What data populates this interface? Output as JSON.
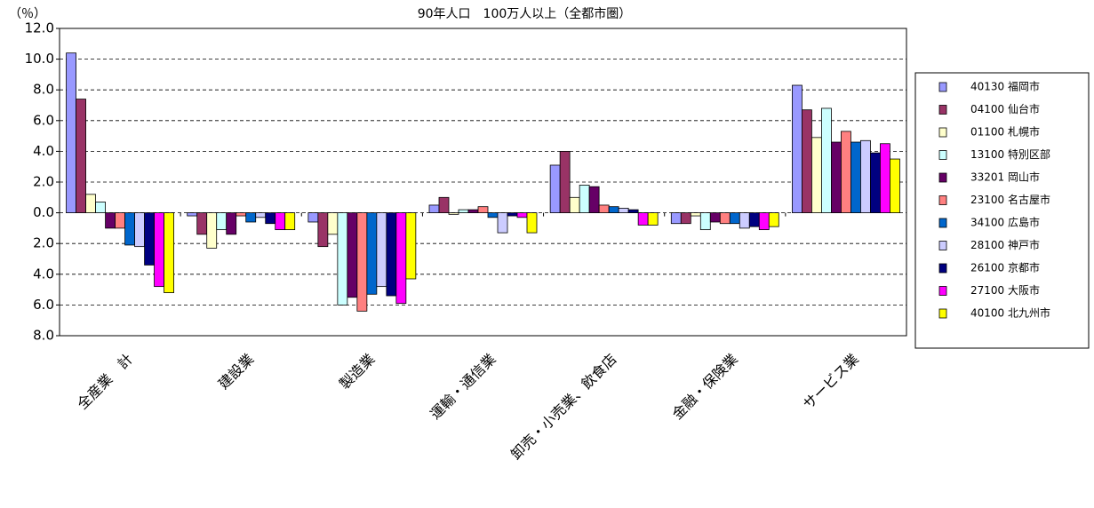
{
  "chart_data": {
    "type": "bar",
    "title": "90年人口　100万人以上（全都市圏）",
    "y_label": "（％）",
    "categories": [
      "全産業　計",
      "建設業",
      "製造業",
      "運輸・通信業",
      "卸売・小売業、飲食店",
      "金融・保険業",
      "サービス業"
    ],
    "series": [
      {
        "name": "40130 福岡市",
        "color": "#9999ff",
        "values": [
          10.4,
          -0.2,
          -0.6,
          0.5,
          3.1,
          -0.7,
          8.3
        ]
      },
      {
        "name": "04100 仙台市",
        "color": "#993366",
        "values": [
          7.4,
          -1.4,
          -2.2,
          1.0,
          4.0,
          -0.7,
          6.7
        ]
      },
      {
        "name": "01100 札幌市",
        "color": "#ffffcc",
        "values": [
          1.2,
          -2.3,
          -1.4,
          -0.1,
          1.0,
          -0.2,
          4.9
        ]
      },
      {
        "name": "13100 特別区部",
        "color": "#ccffff",
        "values": [
          0.7,
          -1.1,
          -6.0,
          0.2,
          1.8,
          -1.1,
          6.8
        ]
      },
      {
        "name": "33201 岡山市",
        "color": "#660066",
        "values": [
          -1.0,
          -1.4,
          -5.5,
          0.2,
          1.7,
          -0.6,
          4.6
        ]
      },
      {
        "name": "23100 名古屋市",
        "color": "#ff8080",
        "values": [
          -1.0,
          -0.2,
          -6.4,
          0.4,
          0.5,
          -0.7,
          5.3
        ]
      },
      {
        "name": "34100 広島市",
        "color": "#0066cc",
        "values": [
          -2.1,
          -0.6,
          -5.3,
          -0.3,
          0.4,
          -0.7,
          4.6
        ]
      },
      {
        "name": "28100 神戸市",
        "color": "#ccccff",
        "values": [
          -2.2,
          -0.3,
          -4.8,
          -1.3,
          0.3,
          -1.0,
          4.7
        ]
      },
      {
        "name": "26100 京都市",
        "color": "#000080",
        "values": [
          -3.4,
          -0.7,
          -5.4,
          -0.2,
          0.2,
          -0.9,
          3.9
        ]
      },
      {
        "name": "27100 大阪市",
        "color": "#ff00ff",
        "values": [
          -4.8,
          -1.1,
          -5.9,
          -0.3,
          -0.8,
          -1.1,
          4.5
        ]
      },
      {
        "name": "40100 北九州市",
        "color": "#ffff00",
        "values": [
          -5.2,
          -1.1,
          -4.3,
          -1.3,
          -0.8,
          -0.9,
          3.5
        ]
      }
    ],
    "ylim": [
      -8,
      12
    ],
    "yticks": [
      {
        "value": -8,
        "label": "8.0"
      },
      {
        "value": -6,
        "label": "6.0"
      },
      {
        "value": -4,
        "label": "4.0"
      },
      {
        "value": -2,
        "label": "2.0"
      },
      {
        "value": 0,
        "label": "0.0"
      },
      {
        "value": 2,
        "label": "2.0"
      },
      {
        "value": 4,
        "label": "4.0"
      },
      {
        "value": 6,
        "label": "6.0"
      },
      {
        "value": 8,
        "label": "8.0"
      },
      {
        "value": 10,
        "label": "10.0"
      },
      {
        "value": 12,
        "label": "12.0"
      }
    ],
    "grid": true,
    "legend": "right"
  }
}
